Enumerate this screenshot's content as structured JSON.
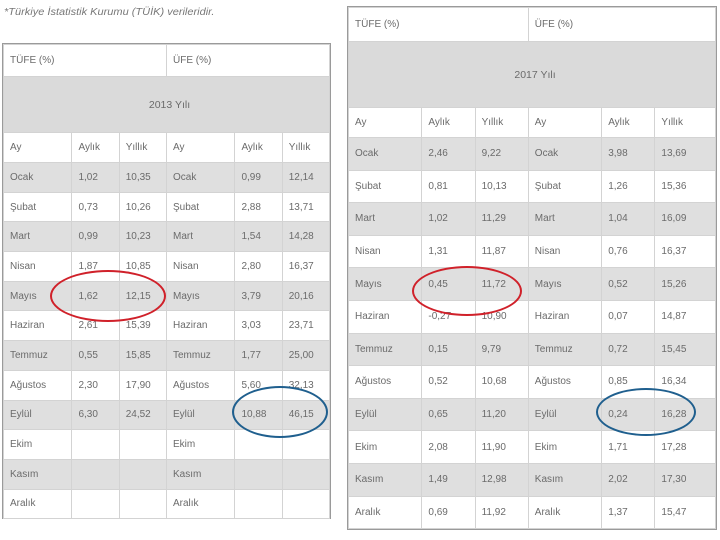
{
  "source_note": "*Türkiye İstatistik Kurumu (TÜİK) verileridir.",
  "left_table": {
    "tufe_header": "TÜFE (%)",
    "ufe_header": "ÜFE (%)",
    "year_label": "2013 Yılı",
    "col_headers": [
      "Ay",
      "Aylık",
      "Yıllık",
      "Ay",
      "Aylık",
      "Yıllık"
    ],
    "rows": [
      [
        "Ocak",
        "1,02",
        "10,35",
        "Ocak",
        "0,99",
        "12,14"
      ],
      [
        "Şubat",
        "0,73",
        "10,26",
        "Şubat",
        "2,88",
        "13,71"
      ],
      [
        "Mart",
        "0,99",
        "10,23",
        "Mart",
        "1,54",
        "14,28"
      ],
      [
        "Nisan",
        "1,87",
        "10,85",
        "Nisan",
        "2,80",
        "16,37"
      ],
      [
        "Mayıs",
        "1,62",
        "12,15",
        "Mayıs",
        "3,79",
        "20,16"
      ],
      [
        "Haziran",
        "2,61",
        "15,39",
        "Haziran",
        "3,03",
        "23,71"
      ],
      [
        "Temmuz",
        "0,55",
        "15,85",
        "Temmuz",
        "1,77",
        "25,00"
      ],
      [
        "Ağustos",
        "2,30",
        "17,90",
        "Ağustos",
        "5,60",
        "32,13"
      ],
      [
        "Eylül",
        "6,30",
        "24,52",
        "Eylül",
        "10,88",
        "46,15"
      ],
      [
        "Ekim",
        "",
        "",
        "Ekim",
        "",
        ""
      ],
      [
        "Kasım",
        "",
        "",
        "Kasım",
        "",
        ""
      ],
      [
        "Aralık",
        "",
        "",
        "Aralık",
        "",
        ""
      ]
    ]
  },
  "right_table": {
    "tufe_header": "TÜFE (%)",
    "ufe_header": "ÜFE (%)",
    "year_label": "2017 Yılı",
    "col_headers": [
      "Ay",
      "Aylık",
      "Yıllık",
      "Ay",
      "Aylık",
      "Yıllık"
    ],
    "rows": [
      [
        "Ocak",
        "2,46",
        "9,22",
        "Ocak",
        "3,98",
        "13,69"
      ],
      [
        "Şubat",
        "0,81",
        "10,13",
        "Şubat",
        "1,26",
        "15,36"
      ],
      [
        "Mart",
        "1,02",
        "11,29",
        "Mart",
        "1,04",
        "16,09"
      ],
      [
        "Nisan",
        "1,31",
        "11,87",
        "Nisan",
        "0,76",
        "16,37"
      ],
      [
        "Mayıs",
        "0,45",
        "11,72",
        "Mayıs",
        "0,52",
        "15,26"
      ],
      [
        "Haziran",
        "-0,27",
        "10,90",
        "Haziran",
        "0,07",
        "14,87"
      ],
      [
        "Temmuz",
        "0,15",
        "9,79",
        "Temmuz",
        "0,72",
        "15,45"
      ],
      [
        "Ağustos",
        "0,52",
        "10,68",
        "Ağustos",
        "0,85",
        "16,34"
      ],
      [
        "Eylül",
        "0,65",
        "11,20",
        "Eylül",
        "0,24",
        "16,28"
      ],
      [
        "Ekim",
        "2,08",
        "11,90",
        "Ekim",
        "1,71",
        "17,28"
      ],
      [
        "Kasım",
        "1,49",
        "12,98",
        "Kasım",
        "2,02",
        "17,30"
      ],
      [
        "Aralık",
        "0,69",
        "11,92",
        "Aralık",
        "1,37",
        "15,47"
      ]
    ]
  },
  "colors": {
    "red_annotation": "#d0212a",
    "blue_annotation": "#1f5f8e",
    "stripe_gray": "#dfdfdf"
  }
}
